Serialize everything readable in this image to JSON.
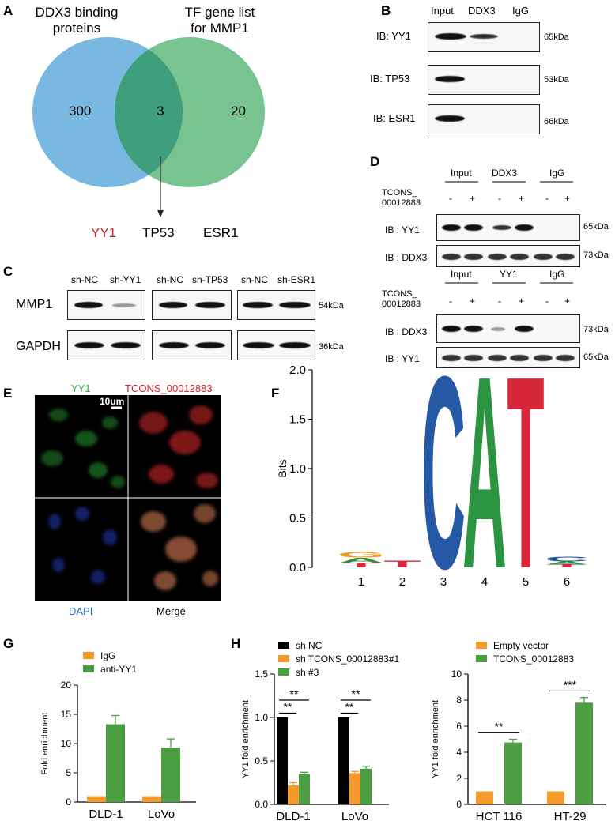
{
  "panels": {
    "A": "A",
    "B": "B",
    "C": "C",
    "D": "D",
    "E": "E",
    "F": "F",
    "G": "G",
    "H": "H"
  },
  "venn": {
    "left_title_1": "DDX3 binding",
    "left_title_2": "proteins",
    "right_title_1": "TF gene list",
    "right_title_2": "for MMP1",
    "left_count": "300",
    "overlap_count": "3",
    "right_count": "20",
    "genes": [
      "YY1",
      "TP53",
      "ESR1"
    ],
    "colors": {
      "left": "#79b8e0",
      "right": "#78c390",
      "overlap": "#3f9e7c",
      "highlight": "#d11f26"
    }
  },
  "panelB": {
    "headers": [
      "Input",
      "DDX3",
      "IgG"
    ],
    "rows": [
      {
        "label": "IB: YY1",
        "size": "65kDa"
      },
      {
        "label": "IB: TP53",
        "size": "53kDa"
      },
      {
        "label": "IB: ESR1",
        "size": "66kDa"
      }
    ]
  },
  "panelC": {
    "groups": [
      [
        "sh-NC",
        "sh-YY1"
      ],
      [
        "sh-NC",
        "sh-TP53"
      ],
      [
        "sh-NC",
        "sh-ESR1"
      ]
    ],
    "rows": [
      {
        "label": "MMP1",
        "size": "54kDa"
      },
      {
        "label": "GAPDH",
        "size": "36kDa"
      }
    ]
  },
  "panelD": {
    "top": {
      "headers": [
        "Input",
        "DDX3",
        "IgG"
      ],
      "treat_label_1": "TCONS_",
      "treat_label_2": "00012883",
      "signs": [
        "-",
        "+",
        "-",
        "+",
        "-",
        "+"
      ],
      "rows": [
        {
          "label": "IB : YY1",
          "size": "65kDa"
        },
        {
          "label": "IB : DDX3",
          "size": "73kDa"
        }
      ]
    },
    "bottom": {
      "headers": [
        "Input",
        "YY1",
        "IgG"
      ],
      "treat_label_1": "TCONS_",
      "treat_label_2": "00012883",
      "signs": [
        "-",
        "+",
        "-",
        "+",
        "-",
        "+"
      ],
      "rows": [
        {
          "label": "IB : DDX3",
          "size": "73kDa"
        },
        {
          "label": "IB : YY1",
          "size": "65kDa"
        }
      ]
    }
  },
  "panelE": {
    "labels": {
      "yy1": "YY1",
      "tcons": "TCONS_00012883",
      "dapi": "DAPI",
      "merge": "Merge",
      "scale": "10um"
    },
    "colors": {
      "yy1": "#2ea83a",
      "tcons": "#d11f26",
      "dapi": "#2a6fc0"
    }
  },
  "chart_data": [
    {
      "id": "F",
      "type": "sequence-logo",
      "ylabel": "Bits",
      "ylim": [
        0,
        2.0
      ],
      "yticks": [
        "0.0",
        "0.5",
        "1.0",
        "1.5",
        "2.0"
      ],
      "positions": [
        "1",
        "2",
        "3",
        "4",
        "5",
        "6"
      ],
      "letters": [
        {
          "pos": 1,
          "stack": [
            {
              "l": "T",
              "v": 0.05
            },
            {
              "l": "A",
              "v": 0.05
            },
            {
              "l": "G",
              "v": 0.06
            }
          ]
        },
        {
          "pos": 2,
          "stack": [
            {
              "l": "T",
              "v": 0.07
            }
          ]
        },
        {
          "pos": 3,
          "stack": [
            {
              "l": "C",
              "v": 2.0
            }
          ]
        },
        {
          "pos": 4,
          "stack": [
            {
              "l": "A",
              "v": 2.0
            }
          ]
        },
        {
          "pos": 5,
          "stack": [
            {
              "l": "T",
              "v": 2.0
            }
          ]
        },
        {
          "pos": 6,
          "stack": [
            {
              "l": "T",
              "v": 0.03
            },
            {
              "l": "A",
              "v": 0.03
            },
            {
              "l": "C",
              "v": 0.05
            }
          ]
        }
      ],
      "colors": {
        "A": "#2a9440",
        "C": "#2559a6",
        "G": "#f0a020",
        "T": "#d6283a"
      }
    },
    {
      "id": "G",
      "type": "bar",
      "ylabel": "Fold enrichment",
      "ylim": [
        0,
        20
      ],
      "yticks": [
        "0",
        "5",
        "10",
        "15",
        "20"
      ],
      "categories": [
        "DLD-1",
        "LoVo"
      ],
      "series": [
        {
          "name": "IgG",
          "color": "#f49a2c",
          "values": [
            1,
            1
          ],
          "errors": [
            0,
            0
          ]
        },
        {
          "name": "anti-YY1",
          "color": "#4b9e41",
          "values": [
            13.3,
            9.3
          ],
          "errors": [
            1.5,
            1.5
          ]
        }
      ]
    },
    {
      "id": "H1",
      "type": "bar",
      "ylabel": "YY1 fold enrichment",
      "ylim": [
        0,
        1.5
      ],
      "yticks": [
        "0.0",
        "0.5",
        "1.0",
        "1.5"
      ],
      "categories": [
        "DLD-1",
        "LoVo"
      ],
      "series": [
        {
          "name": "sh NC",
          "color": "#000000",
          "values": [
            1.0,
            1.0
          ],
          "errors": [
            0,
            0
          ]
        },
        {
          "name": "sh TCONS_00012883#1",
          "color": "#f49a2c",
          "values": [
            0.22,
            0.36
          ],
          "errors": [
            0.03,
            0.02
          ]
        },
        {
          "name": "sh #3",
          "color": "#4b9e41",
          "values": [
            0.35,
            0.41
          ],
          "errors": [
            0.02,
            0.03
          ]
        }
      ],
      "significance": [
        "**",
        "**",
        "**",
        "**"
      ]
    },
    {
      "id": "H2",
      "type": "bar",
      "ylabel": "YY1 fold enrichment",
      "ylim": [
        0,
        10
      ],
      "yticks": [
        "0",
        "2",
        "4",
        "6",
        "8",
        "10"
      ],
      "categories": [
        "HCT 116",
        "HT-29"
      ],
      "series": [
        {
          "name": "Empty vector",
          "color": "#f49a2c",
          "values": [
            1,
            1
          ],
          "errors": [
            0,
            0
          ]
        },
        {
          "name": "TCONS_00012883",
          "color": "#4b9e41",
          "values": [
            4.75,
            7.8
          ],
          "errors": [
            0.25,
            0.4
          ]
        }
      ],
      "significance": [
        "**",
        "***"
      ]
    }
  ]
}
